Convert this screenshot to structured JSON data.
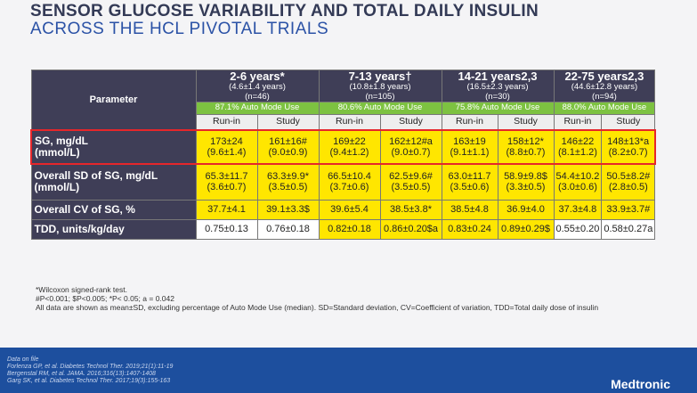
{
  "slide": {
    "title_line1": "SENSOR GLUCOSE VARIABILITY AND TOTAL DAILY INSULIN",
    "title_line2": "ACROSS THE HCL PIVOTAL TRIALS"
  },
  "table": {
    "parameter_header": "Parameter",
    "groups": [
      {
        "title": "2-6 years*",
        "sub": "(4.6±1.4 years)",
        "n": "(n=46)",
        "auto": "87.1% Auto Mode Use"
      },
      {
        "title": "7-13 years†",
        "sub": "(10.8±1.8 years)",
        "n": "(n=105)",
        "auto": "80.6% Auto Mode Use"
      },
      {
        "title": "14-21 years2,3",
        "sub": "(16.5±2.3 years)",
        "n": "(n=30)",
        "auto": "75.8% Auto Mode Use"
      },
      {
        "title": "22-75 years2,3",
        "sub": "(44.6±12.8 years)",
        "n": "(n=94)",
        "auto": "88.0% Auto Mode Use"
      }
    ],
    "subheaders": [
      "Run-in",
      "Study",
      "Run-in",
      "Study",
      "Run-in",
      "Study",
      "Run-in",
      "Study"
    ],
    "rows": [
      {
        "label1": "SG, mg/dL",
        "label2": "(mmol/L)",
        "cells": [
          [
            "173±24",
            "(9.6±1.4)"
          ],
          [
            "161±16#",
            "(9.0±0.9)"
          ],
          [
            "169±22",
            "(9.4±1.2)"
          ],
          [
            "162±12#a",
            "(9.0±0.7)"
          ],
          [
            "163±19",
            "(9.1±1.1)"
          ],
          [
            "158±12*",
            "(8.8±0.7)"
          ],
          [
            "146±22",
            "(8.1±1.2)"
          ],
          [
            "148±13*a",
            "(8.2±0.7)"
          ]
        ]
      },
      {
        "label1": "Overall SD of SG, mg/dL",
        "label2": "(mmol/L)",
        "cells": [
          [
            "65.3±11.7",
            "(3.6±0.7)"
          ],
          [
            "63.3±9.9*",
            "(3.5±0.5)"
          ],
          [
            "66.5±10.4",
            "(3.7±0.6)"
          ],
          [
            "62.5±9.6#",
            "(3.5±0.5)"
          ],
          [
            "63.0±11.7",
            "(3.5±0.6)"
          ],
          [
            "58.9±9.8$",
            "(3.3±0.5)"
          ],
          [
            "54.4±10.2",
            "(3.0±0.6)"
          ],
          [
            "50.5±8.2#",
            "(2.8±0.5)"
          ]
        ]
      },
      {
        "label1": "Overall CV of SG, %",
        "label2": "",
        "cells": [
          [
            "37.7±4.1",
            ""
          ],
          [
            "39.1±3.3$",
            ""
          ],
          [
            "39.6±5.4",
            ""
          ],
          [
            "38.5±3.8*",
            ""
          ],
          [
            "38.5±4.8",
            ""
          ],
          [
            "36.9±4.0",
            ""
          ],
          [
            "37.3±4.8",
            ""
          ],
          [
            "33.9±3.7#",
            ""
          ]
        ]
      },
      {
        "label1": "TDD, units/kg/day",
        "label2": "",
        "cells": [
          [
            "0.75±0.13",
            ""
          ],
          [
            "0.76±0.18",
            ""
          ],
          [
            "0.82±0.18",
            ""
          ],
          [
            "0.86±0.20$a",
            ""
          ],
          [
            "0.83±0.24",
            ""
          ],
          [
            "0.89±0.29$",
            ""
          ],
          [
            "0.55±0.20",
            ""
          ],
          [
            "0.58±0.27a",
            ""
          ]
        ]
      }
    ]
  },
  "footnotes": {
    "line1": "*Wilcoxon signed-rank test.",
    "line2": "#P<0.001; $P<0.005; *P< 0.05; a = 0.042",
    "line3": "All data are shown as mean±SD, excluding percentage of Auto Mode Use (median). SD=Standard deviation, CV=Coefficient of variation, TDD=Total daily dose of insulin"
  },
  "references": {
    "line0": "Data on file",
    "line1": "Forlenza GP, et al. Diabetes Technol Ther. 2019;21(1):11-19",
    "line2": "Bergenstal RM, et al. JAMA. 2016;316(13):1407-1408",
    "line3": "Garg SK, et al. Diabetes Technol Ther. 2017;19(3):155-163"
  },
  "brand": "Medtronic",
  "colors": {
    "header": "#3f3e57",
    "auto_mode": "#7dc241",
    "cell": "#ffe600",
    "highlight": "#e6262a",
    "title_line2": "#2b52a6",
    "bottom_bar": "#1d4f9e"
  }
}
